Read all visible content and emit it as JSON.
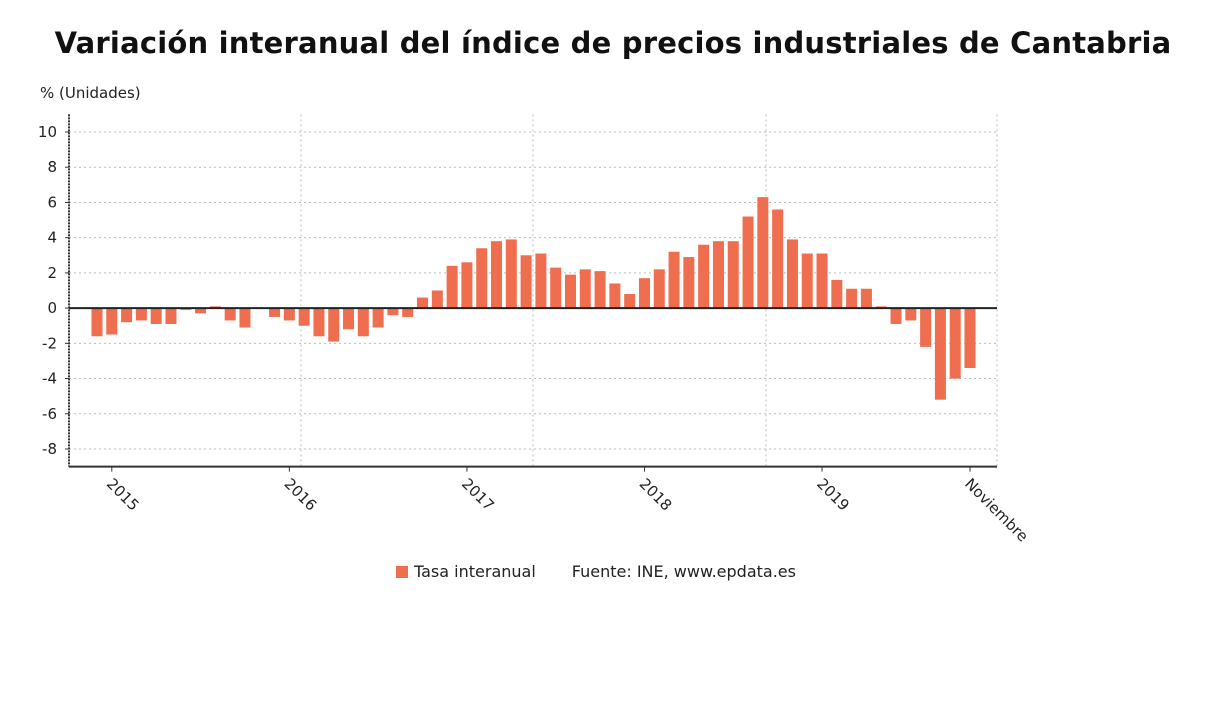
{
  "chart_data": {
    "type": "bar",
    "title": "Variación interanual del índice de precios industriales de Cantabria",
    "ylabel": "% (Unidades)",
    "xlabel": "",
    "ylim": [
      -9,
      11
    ],
    "yticks": [
      10,
      8,
      6,
      4,
      2,
      0,
      -2,
      -4,
      -6,
      -8
    ],
    "grid": true,
    "legend_position": "bottom",
    "bar_color": "#ee6e4f",
    "categories": [
      "2014-12",
      "2015-01",
      "2015-02",
      "2015-03",
      "2015-04",
      "2015-05",
      "2015-06",
      "2015-07",
      "2015-08",
      "2015-09",
      "2015-10",
      "2015-11",
      "2015-12",
      "2016-01",
      "2016-02",
      "2016-03",
      "2016-04",
      "2016-05",
      "2016-06",
      "2016-07",
      "2016-08",
      "2016-09",
      "2016-10",
      "2016-11",
      "2016-12",
      "2017-01",
      "2017-02",
      "2017-03",
      "2017-04",
      "2017-05",
      "2017-06",
      "2017-07",
      "2017-08",
      "2017-09",
      "2017-10",
      "2017-11",
      "2017-12",
      "2018-01",
      "2018-02",
      "2018-03",
      "2018-04",
      "2018-05",
      "2018-06",
      "2018-07",
      "2018-08",
      "2018-09",
      "2018-10",
      "2018-11",
      "2018-12",
      "2019-01",
      "2019-02",
      "2019-03",
      "2019-04",
      "2019-05",
      "2019-06",
      "2019-07",
      "2019-08",
      "2019-09",
      "2019-10",
      "2019-11"
    ],
    "xtick_labels": [
      {
        "category": "2015-01",
        "label": "2015"
      },
      {
        "category": "2016-01",
        "label": "2016"
      },
      {
        "category": "2017-01",
        "label": "2017"
      },
      {
        "category": "2018-01",
        "label": "2018"
      },
      {
        "category": "2019-01",
        "label": "2019"
      },
      {
        "category": "2019-11",
        "label": "Noviembre"
      }
    ],
    "series": [
      {
        "name": "Tasa interanual",
        "values": [
          -1.6,
          -1.5,
          -0.8,
          -0.7,
          -0.9,
          -0.9,
          -0.1,
          -0.3,
          0.1,
          -0.7,
          -1.1,
          -0.05,
          -0.5,
          -0.7,
          -1.0,
          -1.6,
          -1.9,
          -1.2,
          -1.6,
          -1.1,
          -0.4,
          -0.5,
          0.6,
          1.0,
          2.4,
          2.6,
          3.4,
          3.8,
          3.9,
          3.0,
          3.1,
          2.3,
          1.9,
          2.2,
          2.1,
          1.4,
          0.8,
          1.7,
          2.2,
          3.2,
          2.9,
          3.6,
          3.8,
          3.8,
          5.2,
          6.3,
          5.6,
          3.9,
          3.1,
          3.1,
          1.6,
          1.1,
          1.1,
          0.1,
          -0.9,
          -0.7,
          -2.2,
          -5.2,
          -4.0,
          -3.4
        ]
      }
    ],
    "source": "Fuente: INE, www.epdata.es"
  }
}
